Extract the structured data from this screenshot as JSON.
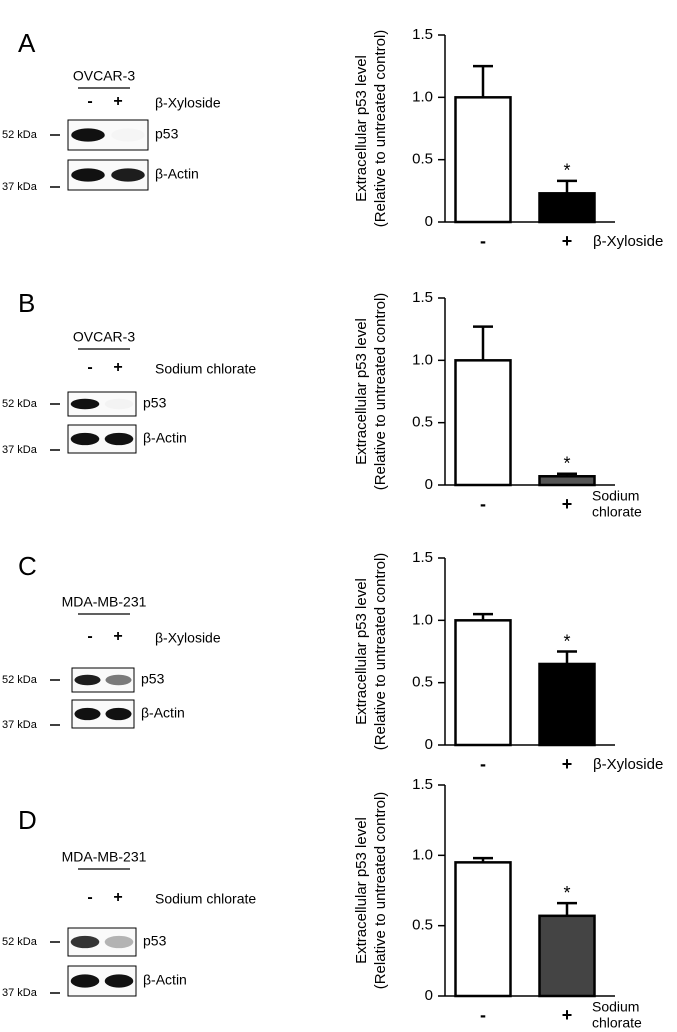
{
  "chart_data": [
    {
      "type": "bar",
      "ylabel": [
        "Extracellular p53 level",
        "(Relative to untreated control)"
      ],
      "categories": [
        "-",
        "+"
      ],
      "xlabel": [
        "β-Xyloside"
      ],
      "values": [
        1.0,
        0.23
      ],
      "errors": [
        0.25,
        0.1
      ],
      "colors": [
        "#ffffff",
        "#000000"
      ],
      "value_annotations": [
        null,
        "*"
      ],
      "ylim": [
        0,
        1.5
      ],
      "yticks": [
        0,
        0.5,
        {
          "value": 1,
          "label": "1.0"
        },
        1.5
      ]
    },
    {
      "type": "bar",
      "ylabel": [
        "Extracellular p53 level",
        "(Relative to untreated control)"
      ],
      "categories": [
        "-",
        "+"
      ],
      "xlabel": [
        "Sodium",
        "chlorate"
      ],
      "values": [
        1.0,
        0.07
      ],
      "errors": [
        0.27,
        0.02
      ],
      "colors": [
        "#ffffff",
        "#555555"
      ],
      "value_annotations": [
        null,
        "*"
      ],
      "ylim": [
        0,
        1.5
      ],
      "yticks": [
        0,
        0.5,
        {
          "value": 1,
          "label": "1.0"
        },
        1.5
      ]
    },
    {
      "type": "bar",
      "ylabel": [
        "Extracellular p53 level",
        "(Relative to untreated control)"
      ],
      "categories": [
        "-",
        "+"
      ],
      "xlabel": [
        "β-Xyloside"
      ],
      "values": [
        1.0,
        0.65
      ],
      "errors": [
        0.05,
        0.1
      ],
      "colors": [
        "#ffffff",
        "#000000"
      ],
      "value_annotations": [
        null,
        "*"
      ],
      "ylim": [
        0,
        1.5
      ],
      "yticks": [
        0,
        0.5,
        {
          "value": 1,
          "label": "1.0"
        },
        1.5
      ]
    },
    {
      "type": "bar",
      "ylabel": [
        "Extracellular p53 level",
        "(Relative to untreated control)"
      ],
      "categories": [
        "-",
        "+"
      ],
      "xlabel": [
        "Sodium",
        "chlorate"
      ],
      "values": [
        0.95,
        0.57
      ],
      "errors": [
        0.03,
        0.09
      ],
      "colors": [
        "#ffffff",
        "#444444"
      ],
      "value_annotations": [
        null,
        "*"
      ],
      "ylim": [
        0,
        1.5
      ],
      "yticks": [
        0,
        0.5,
        {
          "value": 1,
          "label": "1.0"
        },
        1.5
      ]
    }
  ],
  "blots": [
    {
      "letter": "A",
      "cell_line": "OVCAR-3",
      "lanes": [
        "-",
        "+"
      ],
      "treatment": "β-Xyloside",
      "bands": [
        "p53",
        "β-Actin"
      ],
      "markers": [
        "52 kDa",
        "37 kDa"
      ]
    },
    {
      "letter": "B",
      "cell_line": "OVCAR-3",
      "lanes": [
        "-",
        "+"
      ],
      "treatment": "Sodium chlorate",
      "bands": [
        "p53",
        "β-Actin"
      ],
      "markers": [
        "52 kDa",
        "37 kDa"
      ]
    },
    {
      "letter": "C",
      "cell_line": "MDA-MB-231",
      "lanes": [
        "-",
        "+"
      ],
      "treatment": "β-Xyloside",
      "bands": [
        "p53",
        "β-Actin"
      ],
      "markers": [
        "52 kDa",
        "37 kDa"
      ]
    },
    {
      "letter": "D",
      "cell_line": "MDA-MB-231",
      "lanes": [
        "-",
        "+"
      ],
      "treatment": "Sodium chlorate",
      "bands": [
        "p53",
        "β-Actin"
      ],
      "markers": [
        "52 kDa",
        "37 kDa"
      ]
    }
  ]
}
